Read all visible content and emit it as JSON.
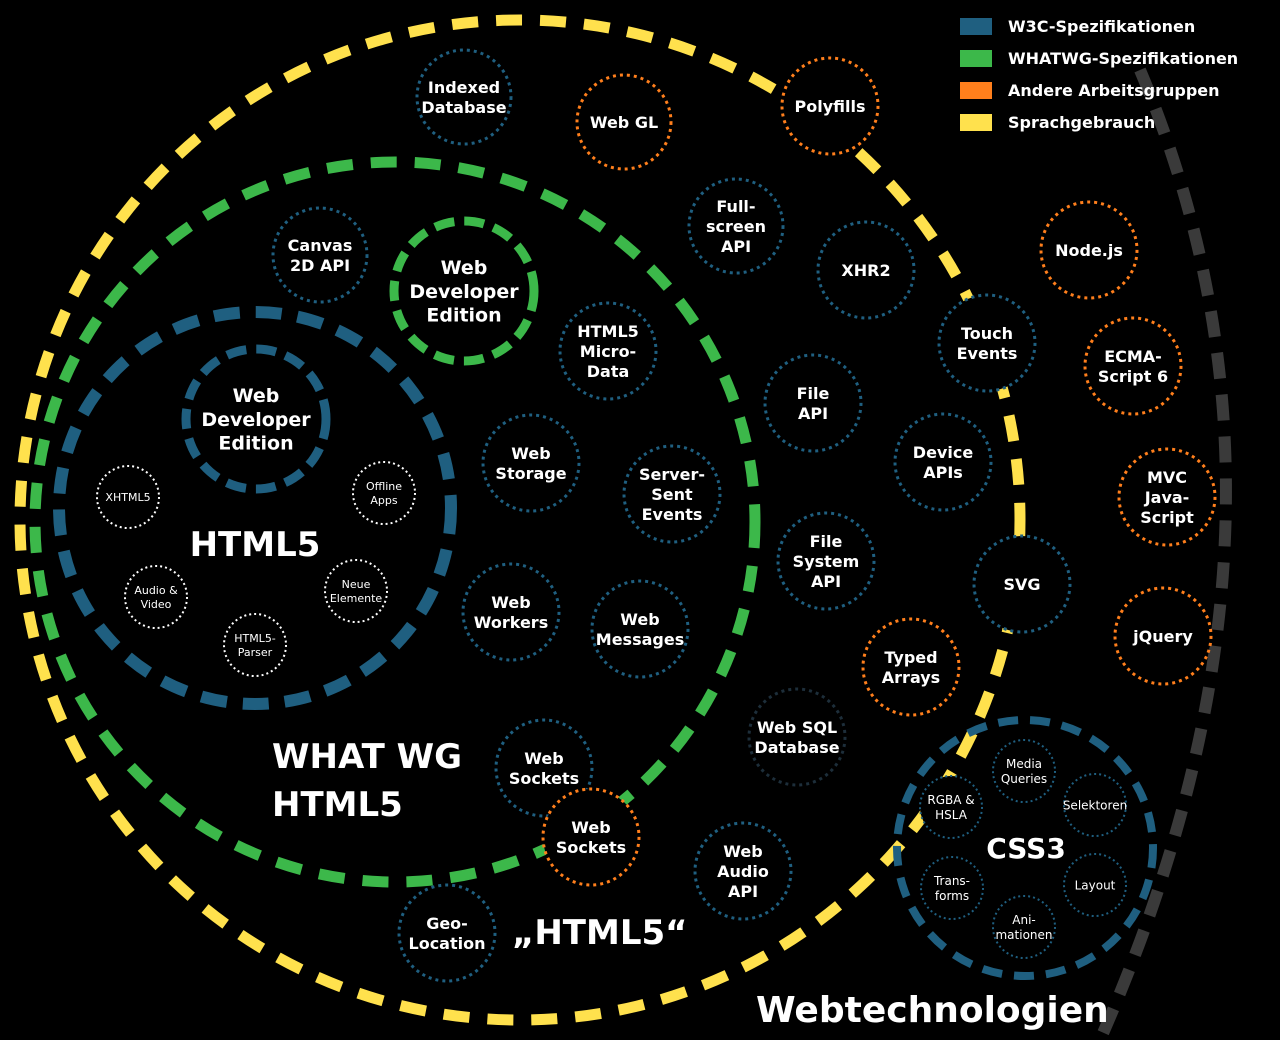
{
  "colors": {
    "w3c": "#1f5f80",
    "whatwg": "#3cb84a",
    "other": "#ff7f1c",
    "usage": "#ffe14d",
    "outer": "#3a3a3a",
    "deprecated": "#1d2e3a",
    "white": "#ffffff"
  },
  "legend": [
    {
      "label": "W3C-Spezifikationen",
      "color": "#1f5f80"
    },
    {
      "label": "WHATWG-Spezifikationen",
      "color": "#3cb84a"
    },
    {
      "label": "Andere Arbeitsgruppen",
      "color": "#ff7f1c"
    },
    {
      "label": "Sprachgebrauch",
      "color": "#ffe14d"
    }
  ],
  "labels": {
    "html5_core": "HTML5",
    "whatwg_html5": [
      "WHAT WG",
      "HTML5"
    ],
    "html5_usage": "„HTML5“",
    "css3": "CSS3",
    "webtech": "Webtechnologien"
  },
  "nodes": {
    "indexed_db": [
      "Indexed",
      "Database"
    ],
    "webgl": [
      "Web GL"
    ],
    "polyfills": [
      "Polyfills"
    ],
    "canvas": [
      "Canvas",
      "2D API"
    ],
    "wde_green": [
      "Web",
      "Developer",
      "Edition"
    ],
    "fullscreen": [
      "Full-",
      "screen",
      "API"
    ],
    "xhr2": [
      "XHR2"
    ],
    "nodejs": [
      "Node.js"
    ],
    "touch": [
      "Touch",
      "Events"
    ],
    "ecma": [
      "ECMA-",
      "Script 6"
    ],
    "microdata": [
      "HTML5",
      "Micro-",
      "Data"
    ],
    "wde_blue": [
      "Web",
      "Developer",
      "Edition"
    ],
    "file_api": [
      "File",
      "API"
    ],
    "webstorage": [
      "Web",
      "Storage"
    ],
    "sse": [
      "Server-",
      "Sent",
      "Events"
    ],
    "device": [
      "Device",
      "APIs"
    ],
    "mvc": [
      "MVC",
      "Java-",
      "Script"
    ],
    "xhtml5": [
      "XHTML5"
    ],
    "offline": [
      "Offline",
      "Apps"
    ],
    "fs_api": [
      "File",
      "System",
      "API"
    ],
    "svg": [
      "SVG"
    ],
    "audio_video": [
      "Audio &",
      "Video"
    ],
    "neue": [
      "Neue",
      "Elemente"
    ],
    "parser": [
      "HTML5-",
      "Parser"
    ],
    "workers": [
      "Web",
      "Workers"
    ],
    "messages": [
      "Web",
      "Messages"
    ],
    "jquery": [
      "jQuery"
    ],
    "typed": [
      "Typed",
      "Arrays"
    ],
    "websql": [
      "Web SQL",
      "Database"
    ],
    "sockets_blue": [
      "Web",
      "Sockets"
    ],
    "sockets_orange": [
      "Web",
      "Sockets"
    ],
    "audio_api": [
      "Web",
      "Audio",
      "API"
    ],
    "geo": [
      "Geo-",
      "Location"
    ],
    "media_q": [
      "Media",
      "Queries"
    ],
    "rgba": [
      "RGBA &",
      "HSLA"
    ],
    "selektoren": [
      "Selektoren"
    ],
    "transforms": [
      "Trans-",
      "forms"
    ],
    "layout": [
      "Layout"
    ],
    "animationen": [
      "Ani-",
      "mationen"
    ]
  }
}
